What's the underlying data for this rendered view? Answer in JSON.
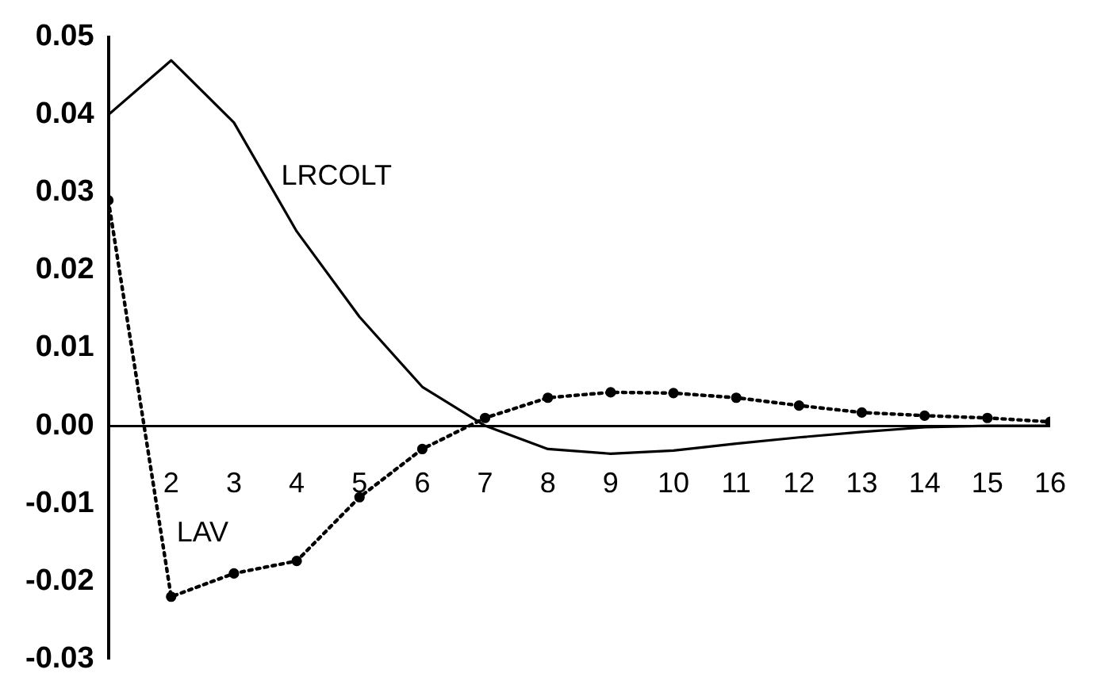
{
  "chart_data": {
    "type": "line",
    "x": [
      1,
      2,
      3,
      4,
      5,
      6,
      7,
      8,
      9,
      10,
      11,
      12,
      13,
      14,
      15,
      16
    ],
    "series": [
      {
        "name": "LRCOLT",
        "color": "#000000",
        "line_style": "solid",
        "marker": "none",
        "values": [
          0.04,
          0.047,
          0.039,
          0.025,
          0.014,
          0.005,
          0.0,
          -0.003,
          -0.0036,
          -0.0032,
          -0.0023,
          -0.0015,
          -0.0008,
          -0.0002,
          0.0,
          0.0
        ]
      },
      {
        "name": "LAV",
        "color": "#000000",
        "line_style": "dotted",
        "marker": "circle",
        "values": [
          0.029,
          -0.022,
          -0.019,
          -0.0174,
          -0.0092,
          -0.003,
          0.001,
          0.0036,
          0.0043,
          0.0042,
          0.0036,
          0.0026,
          0.0017,
          0.0013,
          0.001,
          0.0005
        ]
      }
    ],
    "xlim": [
      1,
      16
    ],
    "xticks": [
      2,
      3,
      4,
      5,
      6,
      7,
      8,
      9,
      10,
      11,
      12,
      13,
      14,
      15,
      16
    ],
    "ylim": [
      -0.03,
      0.05
    ],
    "yticks": [
      {
        "value": -0.03,
        "label": "-0.03"
      },
      {
        "value": -0.02,
        "label": "-0.02"
      },
      {
        "value": -0.01,
        "label": "-0.01"
      },
      {
        "value": 0,
        "label": "0.00"
      },
      {
        "value": 0.01,
        "label": "0.01"
      },
      {
        "value": 0.02,
        "label": "0.02"
      },
      {
        "value": 0.03,
        "label": "0.03"
      },
      {
        "value": 0.04,
        "label": "0.04"
      },
      {
        "value": 0.05,
        "label": "0.05"
      }
    ],
    "grid": false,
    "legend": false
  }
}
